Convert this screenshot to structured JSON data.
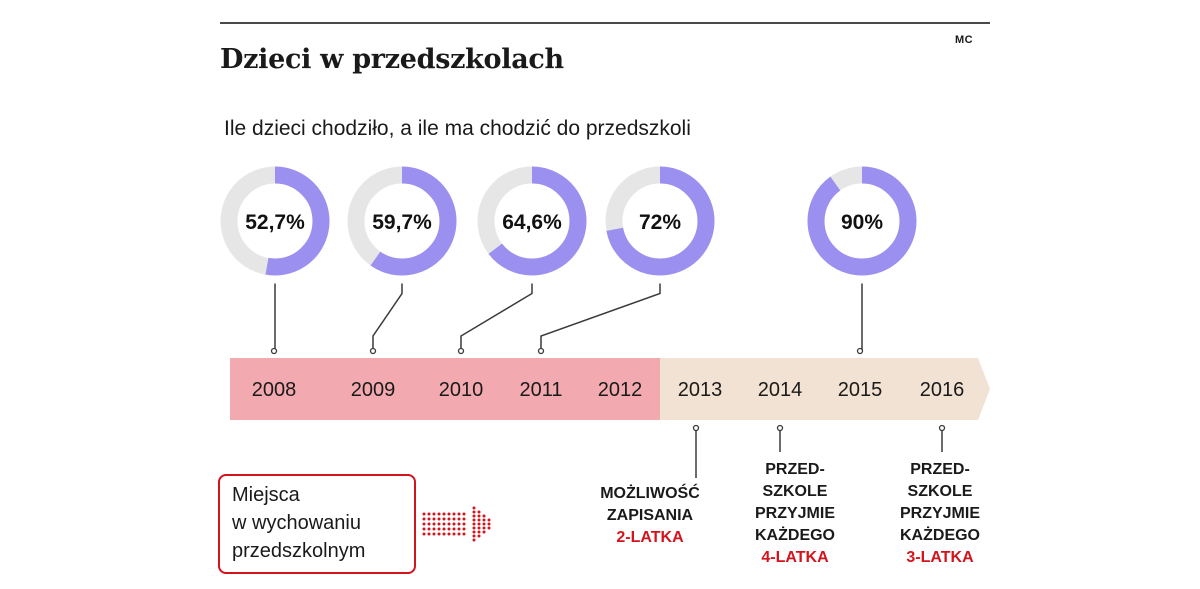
{
  "credit": "MC",
  "title": "Dzieci w przedszkolach",
  "subtitle": "Ile dzieci chodziło, a ile ma chodzić do przedszkoli",
  "legend": {
    "lines": [
      "Miejsca",
      "w wychowaniu",
      "przedszkolnym"
    ]
  },
  "colors": {
    "ring_fill": "#9b90f0",
    "ring_track": "#e6e6e6",
    "past_band": "#f2aab0",
    "future_band": "#f2e2d4",
    "accent_red": "#d4141c",
    "connector": "#3a3a3a"
  },
  "chart_data": {
    "type": "timeline-donuts",
    "timeline_years": [
      "2008",
      "2009",
      "2010",
      "2011",
      "2012",
      "2013",
      "2014",
      "2015",
      "2016"
    ],
    "past_years": [
      "2008",
      "2009",
      "2010",
      "2011",
      "2012"
    ],
    "future_years": [
      "2013",
      "2014",
      "2015",
      "2016"
    ],
    "donuts": [
      {
        "year": "2008",
        "value": 52.7,
        "label": "52,7%"
      },
      {
        "year": "2009",
        "value": 59.7,
        "label": "59,7%"
      },
      {
        "year": "2010",
        "value": 64.6,
        "label": "64,6%"
      },
      {
        "year": "2011",
        "value": 72,
        "label": "72%"
      },
      {
        "year": "2015",
        "value": 90,
        "label": "90%"
      }
    ],
    "annotations": [
      {
        "year": "2013",
        "lines": [
          "MOŻLIWOŚĆ",
          "ZAPISANIA"
        ],
        "highlight": "2-LATKA"
      },
      {
        "year": "2014",
        "lines": [
          "PRZED-",
          "SZKOLE",
          "PRZYJMIE",
          "KAŻDEGO"
        ],
        "highlight": "4-LATKA"
      },
      {
        "year": "2016",
        "lines": [
          "PRZED-",
          "SZKOLE",
          "PRZYJMIE",
          "KAŻDEGO"
        ],
        "highlight": "3-LATKA"
      }
    ]
  }
}
